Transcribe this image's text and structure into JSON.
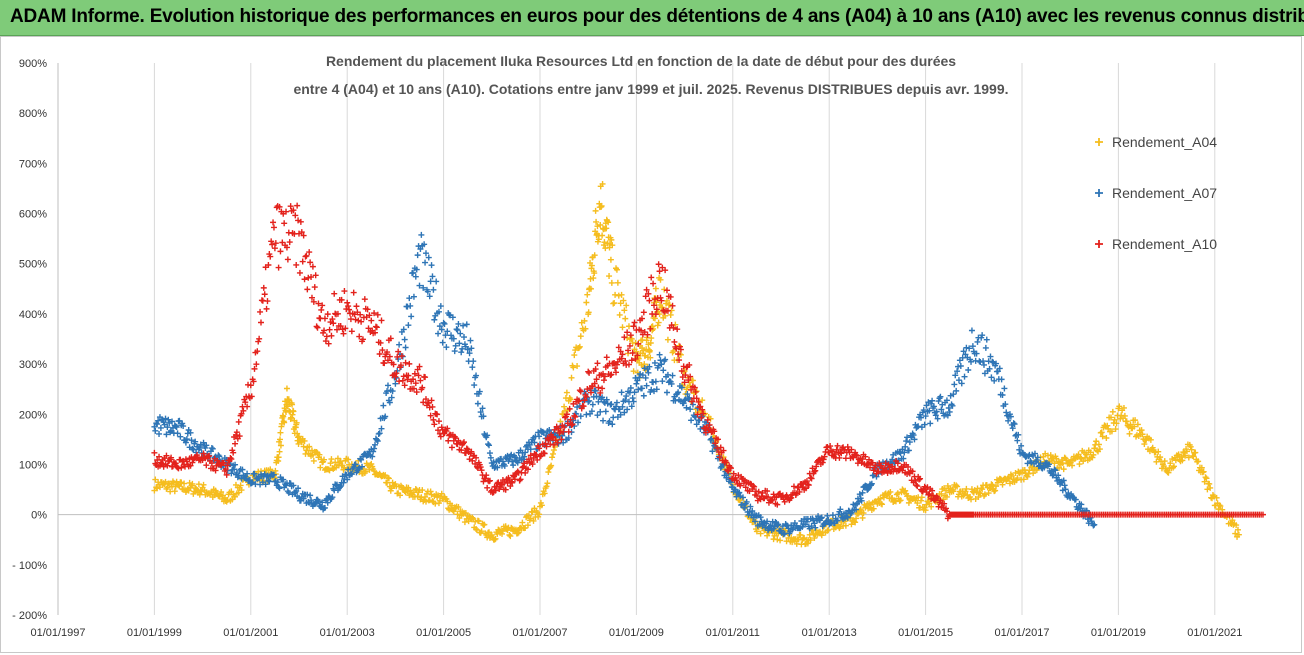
{
  "banner": {
    "title": "ADAM Informe. Evolution historique des performances en euros pour des détentions de 4 ans (A04) à 10 ans (A10) avec les revenus connus distribués",
    "color": "#7fcb79"
  },
  "chart_data": {
    "type": "scatter",
    "title": "Rendement du placement Iluka Resources Ltd en fonction de la date de début pour des durées",
    "subtitle": "entre 4 (A04) et 10 ans (A10). Cotations entre janv 1999 et juil. 2025. Revenus DISTRIBUES depuis avr. 1999.",
    "xlabel": "",
    "ylabel": "",
    "grid": "vertical",
    "legend_position": "right",
    "x_ticks": [
      "01/01/1997",
      "01/01/1999",
      "01/01/2001",
      "01/01/2003",
      "01/01/2005",
      "01/01/2007",
      "01/01/2009",
      "01/01/2011",
      "01/01/2013",
      "01/01/2015",
      "01/01/2017",
      "01/01/2019",
      "01/01/2021"
    ],
    "y_ticks": [
      "900%",
      "800%",
      "700%",
      "600%",
      "500%",
      "400%",
      "300%",
      "200%",
      "100%",
      "0%",
      "- 100%",
      "- 200%"
    ],
    "xlim": [
      "01/01/1997",
      "01/01/2022"
    ],
    "ylim": [
      -200,
      900
    ],
    "series": [
      {
        "name": "Rendement_A04",
        "color": "#f5bd1f",
        "points": [
          [
            "01/01/1999",
            60
          ],
          [
            "01/07/1999",
            55
          ],
          [
            "01/01/2000",
            50
          ],
          [
            "01/07/2000",
            30
          ],
          [
            "01/01/2001",
            75
          ],
          [
            "01/07/2001",
            80
          ],
          [
            "01/10/2001",
            230
          ],
          [
            "01/01/2002",
            150
          ],
          [
            "01/07/2002",
            100
          ],
          [
            "01/01/2003",
            100
          ],
          [
            "01/07/2003",
            90
          ],
          [
            "01/01/2004",
            50
          ],
          [
            "01/07/2004",
            40
          ],
          [
            "01/01/2005",
            30
          ],
          [
            "01/07/2005",
            -10
          ],
          [
            "01/01/2006",
            -40
          ],
          [
            "01/07/2006",
            -30
          ],
          [
            "01/01/2007",
            10
          ],
          [
            "01/07/2007",
            200
          ],
          [
            "01/01/2008",
            420
          ],
          [
            "01/04/2008",
            640
          ],
          [
            "01/07/2008",
            480
          ],
          [
            "01/01/2009",
            300
          ],
          [
            "01/04/2009",
            330
          ],
          [
            "01/07/2009",
            450
          ],
          [
            "01/01/2010",
            270
          ],
          [
            "01/07/2010",
            180
          ],
          [
            "01/01/2011",
            60
          ],
          [
            "01/07/2011",
            -30
          ],
          [
            "01/01/2012",
            -40
          ],
          [
            "01/07/2012",
            -50
          ],
          [
            "01/01/2013",
            -20
          ],
          [
            "01/07/2013",
            -10
          ],
          [
            "01/01/2014",
            30
          ],
          [
            "01/07/2014",
            40
          ],
          [
            "01/01/2015",
            20
          ],
          [
            "01/07/2015",
            50
          ],
          [
            "01/01/2016",
            40
          ],
          [
            "01/07/2016",
            60
          ],
          [
            "01/01/2017",
            80
          ],
          [
            "01/07/2017",
            110
          ],
          [
            "01/01/2018",
            100
          ],
          [
            "01/07/2018",
            130
          ],
          [
            "01/01/2019",
            200
          ],
          [
            "01/07/2019",
            160
          ],
          [
            "01/01/2020",
            90
          ],
          [
            "01/07/2020",
            130
          ],
          [
            "01/01/2021",
            30
          ],
          [
            "01/07/2021",
            -40
          ]
        ]
      },
      {
        "name": "Rendement_A07",
        "color": "#2e75b6",
        "points": [
          [
            "01/01/1999",
            180
          ],
          [
            "01/07/1999",
            170
          ],
          [
            "01/01/2000",
            130
          ],
          [
            "01/07/2000",
            100
          ],
          [
            "01/01/2001",
            70
          ],
          [
            "01/07/2001",
            70
          ],
          [
            "01/01/2002",
            40
          ],
          [
            "01/07/2002",
            20
          ],
          [
            "01/01/2003",
            80
          ],
          [
            "01/07/2003",
            120
          ],
          [
            "01/01/2004",
            280
          ],
          [
            "01/07/2004",
            510
          ],
          [
            "01/01/2005",
            380
          ],
          [
            "01/07/2005",
            340
          ],
          [
            "01/01/2006",
            100
          ],
          [
            "01/07/2006",
            110
          ],
          [
            "01/01/2007",
            150
          ],
          [
            "01/07/2007",
            160
          ],
          [
            "01/01/2008",
            230
          ],
          [
            "01/07/2008",
            200
          ],
          [
            "01/01/2009",
            250
          ],
          [
            "01/07/2009",
            290
          ],
          [
            "01/01/2010",
            230
          ],
          [
            "01/07/2010",
            160
          ],
          [
            "01/01/2011",
            50
          ],
          [
            "01/07/2011",
            -10
          ],
          [
            "01/01/2012",
            -30
          ],
          [
            "01/07/2012",
            -20
          ],
          [
            "01/01/2013",
            -10
          ],
          [
            "01/07/2013",
            10
          ],
          [
            "01/01/2014",
            90
          ],
          [
            "01/07/2014",
            120
          ],
          [
            "01/01/2015",
            200
          ],
          [
            "01/07/2015",
            220
          ],
          [
            "01/01/2016",
            350
          ],
          [
            "01/07/2016",
            280
          ],
          [
            "01/01/2017",
            120
          ],
          [
            "01/07/2017",
            100
          ],
          [
            "01/01/2018",
            40
          ],
          [
            "01/07/2018",
            -20
          ]
        ]
      },
      {
        "name": "Rendement_A10",
        "color": "#e3221c",
        "points": [
          [
            "01/01/1999",
            110
          ],
          [
            "01/07/1999",
            100
          ],
          [
            "01/01/2000",
            110
          ],
          [
            "01/07/2000",
            90
          ],
          [
            "01/01/2001",
            250
          ],
          [
            "01/07/2001",
            560
          ],
          [
            "01/01/2002",
            550
          ],
          [
            "01/07/2002",
            380
          ],
          [
            "01/01/2003",
            410
          ],
          [
            "01/07/2003",
            380
          ],
          [
            "01/01/2004",
            300
          ],
          [
            "01/07/2004",
            270
          ],
          [
            "01/01/2005",
            160
          ],
          [
            "01/07/2005",
            130
          ],
          [
            "01/01/2006",
            50
          ],
          [
            "01/07/2006",
            70
          ],
          [
            "01/01/2007",
            130
          ],
          [
            "01/07/2007",
            170
          ],
          [
            "01/01/2008",
            260
          ],
          [
            "01/07/2008",
            290
          ],
          [
            "01/01/2009",
            350
          ],
          [
            "01/07/2009",
            470
          ],
          [
            "01/01/2010",
            290
          ],
          [
            "01/07/2010",
            170
          ],
          [
            "01/01/2011",
            80
          ],
          [
            "01/07/2011",
            40
          ],
          [
            "01/01/2012",
            30
          ],
          [
            "01/07/2012",
            60
          ],
          [
            "01/01/2013",
            130
          ],
          [
            "01/07/2013",
            120
          ],
          [
            "01/01/2014",
            90
          ],
          [
            "01/07/2014",
            100
          ],
          [
            "01/01/2015",
            50
          ],
          [
            "01/07/2015",
            0
          ],
          [
            "01/01/2016",
            0
          ],
          [
            "01/01/2017",
            0
          ],
          [
            "01/01/2018",
            0
          ],
          [
            "01/01/2019",
            0
          ],
          [
            "01/01/2020",
            0
          ],
          [
            "01/01/2021",
            0
          ],
          [
            "01/01/2022",
            0
          ]
        ]
      }
    ]
  }
}
